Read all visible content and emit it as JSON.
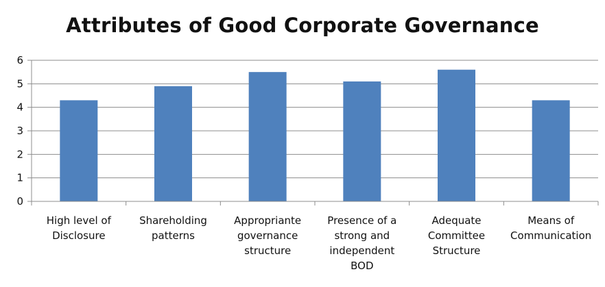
{
  "chart_data": {
    "type": "bar",
    "title": "Attributes of Good Corporate Governance",
    "categories": [
      [
        "High level of",
        "Disclosure"
      ],
      [
        "Shareholding",
        "patterns"
      ],
      [
        "Appropriante",
        "governance",
        "structure"
      ],
      [
        "Presence of a",
        "strong and",
        "independent",
        "BOD"
      ],
      [
        "Adequate",
        "Committee",
        "Structure"
      ],
      [
        "Means of",
        "Communication"
      ]
    ],
    "values": [
      4.3,
      4.9,
      5.5,
      5.1,
      5.6,
      4.3
    ],
    "ylim": [
      0,
      6
    ],
    "yticks": [
      0,
      1,
      2,
      3,
      4,
      5,
      6
    ],
    "grid": true,
    "legend": "none",
    "bar_color": "#4F81BD",
    "grid_color": "#8C8C8C"
  }
}
